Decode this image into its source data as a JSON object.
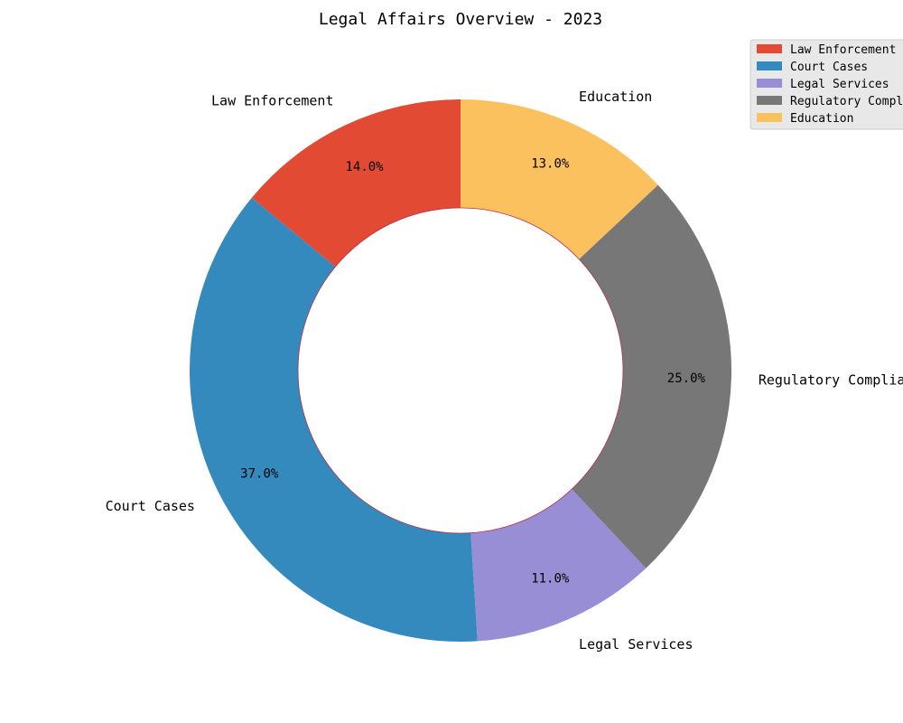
{
  "chart_data": {
    "type": "pie",
    "title": "Legal Affairs Overview - 2023",
    "donut": true,
    "start_angle_deg": 90,
    "direction": "counterclockwise",
    "categories": [
      "Law Enforcement",
      "Court Cases",
      "Legal Services",
      "Regulatory Compliance",
      "Education"
    ],
    "values": [
      14,
      37,
      11,
      25,
      13
    ],
    "percent_labels": [
      "14.0%",
      "37.0%",
      "11.0%",
      "25.0%",
      "13.0%"
    ],
    "colors": [
      "#E24A33",
      "#348ABD",
      "#988ED5",
      "#777777",
      "#FBC15E"
    ],
    "legend": {
      "placement": "top-right",
      "entries": [
        "Law Enforcement",
        "Court Cases",
        "Legal Services",
        "Regulatory Compliance",
        "Education"
      ]
    }
  }
}
